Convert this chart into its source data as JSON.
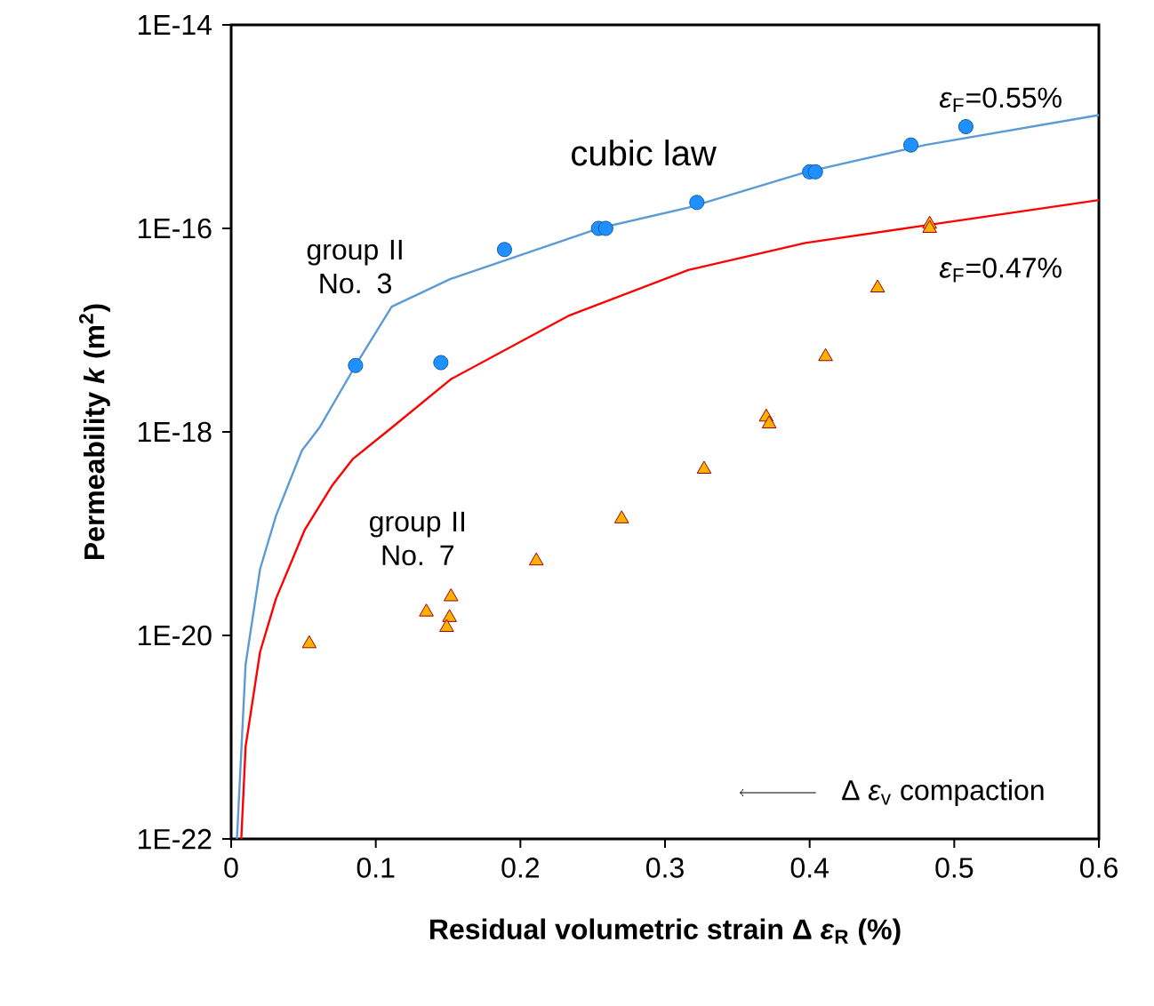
{
  "chart_data": {
    "type": "scatter",
    "xlabel": "Residual volumetric strain Δ *ε*$_{R}$ (%)",
    "ylabel": "Permeability *k* (m$^{2}$)",
    "log": "y",
    "xlim": [
      0,
      0.6
    ],
    "xticks": [
      0,
      0.1,
      0.2,
      0.3,
      0.4,
      0.5,
      0.6
    ],
    "ylim": [
      1e-22,
      1e-14
    ],
    "yticks": [
      {
        "value": 1e-22,
        "label": "1E-22"
      },
      {
        "value": 1e-20,
        "label": "1E-20"
      },
      {
        "value": 1e-18,
        "label": "1E-18"
      },
      {
        "value": 1e-16,
        "label": "1E-16"
      },
      {
        "value": 1e-14,
        "label": "1E-14"
      }
    ],
    "grid": false,
    "series": [
      {
        "type": "line",
        "color": "#5b9bd5",
        "marker": "none",
        "line_style": "solid",
        "x": [
          0.004,
          0.01,
          0.02,
          0.031,
          0.049,
          0.061,
          0.086,
          0.111,
          0.152,
          0.254,
          0.316,
          0.398,
          0.48,
          0.6
        ],
        "values": [
          1e-22,
          5.2e-21,
          4.5e-20,
          1.5e-19,
          6.6e-19,
          1.1e-18,
          4.5e-18,
          1.7e-17,
          3.2e-17,
          1e-16,
          1.6e-16,
          3.6e-16,
          6.6e-16,
          1.3e-15
        ]
      },
      {
        "type": "line",
        "color": "#ff0000",
        "marker": "none",
        "line_style": "solid",
        "x": [
          0.007,
          0.01,
          0.02,
          0.031,
          0.051,
          0.07,
          0.084,
          0.111,
          0.152,
          0.234,
          0.316,
          0.397,
          0.48,
          0.6
        ],
        "values": [
          1e-22,
          8.1e-22,
          6.9e-21,
          2.3e-20,
          1.1e-19,
          3e-19,
          5.4e-19,
          1.1e-18,
          3.3e-18,
          1.4e-17,
          3.9e-17,
          7.2e-17,
          1.07e-16,
          1.9e-16
        ]
      },
      {
        "color": "#1e90ff",
        "marker": "circle",
        "x": [
          0.086,
          0.145,
          0.189,
          0.254,
          0.259,
          0.322,
          0.4,
          0.404,
          0.47,
          0.508
        ],
        "values": [
          4.5e-18,
          4.8e-18,
          6.2e-17,
          1e-16,
          1e-16,
          1.8e-16,
          3.6e-16,
          3.6e-16,
          6.6e-16,
          1e-15
        ]
      },
      {
        "color": "#ffb000",
        "marker": "triangle",
        "x": [
          0.483,
          0.483,
          0.447,
          0.411,
          0.37,
          0.372,
          0.327,
          0.27,
          0.211,
          0.152,
          0.135,
          0.151,
          0.149,
          0.054
        ],
        "values": [
          1.1e-16,
          1e-16,
          2.6e-17,
          5.5e-18,
          1.4e-18,
          1.2e-18,
          4.3e-19,
          1.4e-19,
          5.4e-20,
          2.4e-20,
          1.7e-20,
          1.5e-20,
          1.2e-20,
          8.3e-21
        ]
      }
    ],
    "annotations": [
      "cubic law",
      "*ε*$_{F}$=0.55%",
      "*ε*$_{F}$=0.47%",
      "group II No. 3",
      "group II No. 7",
      "Δ *ε*$_{v}$ compaction"
    ]
  }
}
